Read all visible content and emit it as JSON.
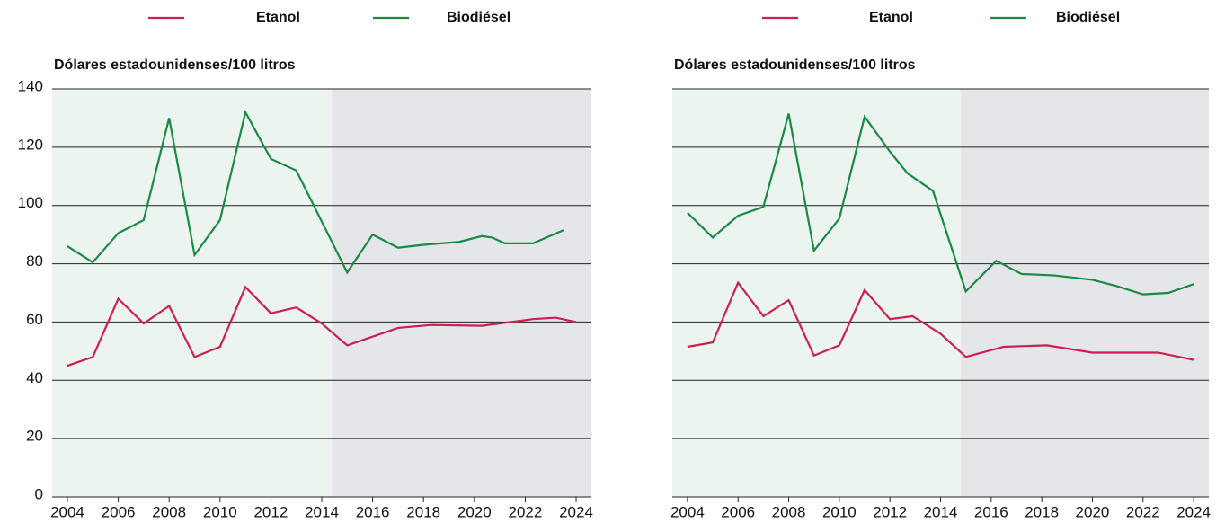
{
  "chart_data": [
    {
      "type": "line",
      "ylabel": "Dólares estadounidenses/100 litros",
      "xlim": [
        2003.4,
        2024.6
      ],
      "xticks": [
        2004,
        2006,
        2008,
        2010,
        2012,
        2014,
        2016,
        2018,
        2020,
        2022,
        2024
      ],
      "ylim": [
        0,
        140
      ],
      "yticks": [
        0,
        20,
        40,
        60,
        80,
        100,
        120,
        140
      ],
      "ytick_labels": true,
      "grid": true,
      "shade_split": 2014.4,
      "shade_colors": [
        "#ebf4ee",
        "#e5e6e9"
      ],
      "series": [
        {
          "name": "Etanol",
          "color": "#cc1f52",
          "x": [
            2004,
            2005,
            2006,
            2007,
            2008,
            2009,
            2010,
            2011,
            2012,
            2013,
            2014,
            2015,
            2017,
            2018.3,
            2020.3,
            2022.3,
            2023.2,
            2024
          ],
          "values": [
            45,
            48,
            68,
            59.5,
            65.5,
            48,
            51.5,
            72,
            63,
            65,
            59.5,
            52,
            58,
            59,
            58.7,
            61,
            61.5,
            60
          ]
        },
        {
          "name": "Biodiésel",
          "color": "#1a8a44",
          "x": [
            2004,
            2005,
            2006,
            2007,
            2008,
            2009,
            2010,
            2011,
            2012,
            2013,
            2015,
            2016,
            2017,
            2018,
            2019.4,
            2020.3,
            2020.7,
            2021.2,
            2022.3,
            2023.5
          ],
          "values": [
            86,
            80.5,
            90.5,
            95,
            130,
            83,
            95,
            132,
            116,
            112,
            77,
            90,
            85.5,
            86.5,
            87.5,
            89.5,
            89,
            87,
            87,
            91.5
          ]
        }
      ]
    },
    {
      "type": "line",
      "ylabel": "Dólares estadounidenses/100 litros",
      "xlim": [
        2003.4,
        2024.6
      ],
      "xticks": [
        2004,
        2006,
        2008,
        2010,
        2012,
        2014,
        2016,
        2018,
        2020,
        2022,
        2024
      ],
      "ylim": [
        0,
        140
      ],
      "yticks": [
        0,
        20,
        40,
        60,
        80,
        100,
        120,
        140
      ],
      "ytick_labels": false,
      "grid": true,
      "shade_split": 2014.8,
      "shade_colors": [
        "#ebf4ee",
        "#e5e6e9"
      ],
      "series": [
        {
          "name": "Etanol",
          "color": "#cc1f52",
          "x": [
            2004,
            2005,
            2006,
            2007,
            2008,
            2009,
            2010,
            2011,
            2012,
            2012.9,
            2014,
            2015,
            2016.5,
            2018.2,
            2020,
            2022.6,
            2024
          ],
          "values": [
            51.5,
            53,
            73.5,
            62,
            67.5,
            48.5,
            52,
            71,
            61,
            62,
            56,
            48,
            51.5,
            52,
            49.5,
            49.5,
            47
          ]
        },
        {
          "name": "Biodiésel",
          "color": "#1a8a44",
          "x": [
            2004,
            2005,
            2006,
            2007,
            2008,
            2009,
            2010,
            2011,
            2012,
            2012.7,
            2013.7,
            2015,
            2016.2,
            2017.2,
            2018.5,
            2020,
            2020.9,
            2022,
            2023,
            2024
          ],
          "values": [
            97.5,
            89,
            96.5,
            99.5,
            131.5,
            84.5,
            95.5,
            130.5,
            118.5,
            111,
            105,
            70.5,
            81,
            76.5,
            76,
            74.5,
            72.5,
            69.5,
            70,
            73
          ]
        }
      ]
    }
  ]
}
